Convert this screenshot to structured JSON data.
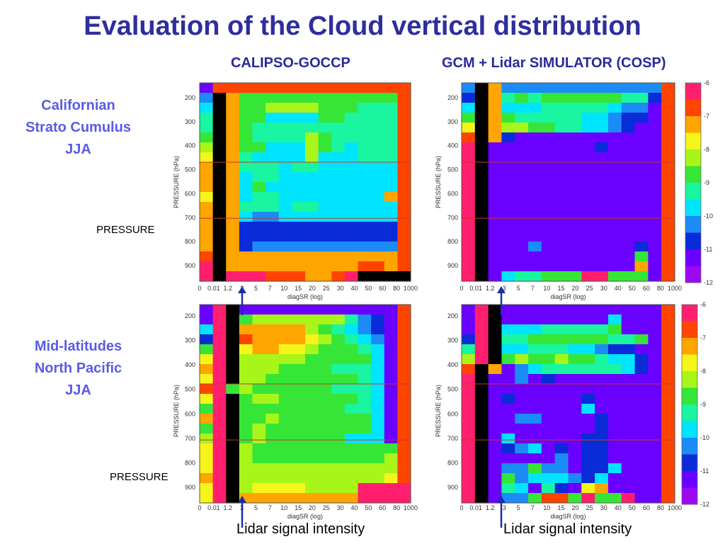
{
  "slide": {
    "title": "Evaluation of the Cloud vertical distribution",
    "col_left": "CALIPSO-GOCCP",
    "col_right": "GCM + Lidar SIMULATOR (COSP)",
    "row1_lines": [
      "Californian",
      "Strato Cumulus",
      "JJA"
    ],
    "row2_lines": [
      "Mid-latitudes",
      "North Pacific",
      "JJA"
    ],
    "pressure_note": "PRESSURE",
    "signal_note": "Lidar signal intensity"
  },
  "colors": {
    "title": "#2e2e9e",
    "row_label": "#5b5be6",
    "arrow": "#1a2ea8",
    "ref_line": "#c0392b",
    "palette": [
      "#9a09f2",
      "#6a00ff",
      "#0a2bd8",
      "#1b8cf6",
      "#00e5ff",
      "#19f5a0",
      "#36e636",
      "#a8f51a",
      "#f5f51a",
      "#ffa500",
      "#ff4400",
      "#ff1f6e"
    ]
  },
  "chart_data": [
    {
      "type": "heatmap",
      "panel": "CALIPSO-GOCCP, Californian Strato Cumulus JJA",
      "xlabel": "diagSR (log)",
      "ylabel": "PRESSURE (hPa)",
      "x_ticks": [
        "0",
        "0.01",
        "1.2",
        "3",
        "5",
        "7",
        "10",
        "15",
        "20",
        "25",
        "30",
        "40",
        "50",
        "60",
        "80",
        "1000"
      ],
      "y_ticks": [
        200,
        300,
        400,
        500,
        600,
        700,
        800,
        900
      ],
      "ylim": [
        100,
        950
      ],
      "z_range": [
        -12,
        -6
      ],
      "colorbar_ticks": [],
      "grid": [
        "1aaaaaaaaaaaaaaa",
        "3c9666666666666a",
        "4c9667777666555a",
        "5c9664444665555a",
        "5c9655555555555a",
        "6c9655557655555a",
        "7c9664447654555a",
        "8c9544447444555a",
        "9c9555455444444a",
        "9c9455444444444a",
        "9c9464444444444a",
        "8c9455444444449a",
        "9c9555455444444a",
        "9c9433444444444a",
        "9c9222222222222a",
        "9c9222222222222a",
        "9c9233333333333a",
        "ac9999999999999a",
        "bc9999999999aa9a",
        "bcbbbaaa99abcccc"
      ]
    },
    {
      "type": "heatmap",
      "panel": "GCM + Lidar SIMULATOR (COSP), Californian Strato Cumulus JJA",
      "xlabel": "diagSR (log)",
      "ylabel": "PRESSURE (hPa)",
      "x_ticks": [
        "0",
        "0.01",
        "1.2",
        "3",
        "5",
        "7",
        "10",
        "15",
        "20",
        "25",
        "30",
        "40",
        "50",
        "60",
        "80",
        "1000"
      ],
      "y_ticks": [
        200,
        300,
        400,
        500,
        600,
        700,
        800,
        900
      ],
      "ylim": [
        100,
        950
      ],
      "z_range": [
        -12,
        -6
      ],
      "colorbar_ticks": [
        "-6",
        "-7",
        "-8",
        "-9",
        "-10",
        "-11",
        "-12"
      ],
      "grid": [
        "3c9333333333333a",
        "2c9565666666552a",
        "4c9444555554331a",
        "6c9655555443221a",
        "8c9776655443211a",
        "ac9211111111111a",
        "bc1111111121111a",
        "bc1111111111111a",
        "bc1111111111111a",
        "bc1111111111111a",
        "bc1111111111111a",
        "bc1111111111111a",
        "bc1111111111111a",
        "bc1111111111111a",
        "bc1111111111111a",
        "bc1111111111111a",
        "bc1113111111121a",
        "bc1111111111161a",
        "bc1111111111191a",
        "bc1455666bb6661a"
      ]
    },
    {
      "type": "heatmap",
      "panel": "CALIPSO-GOCCP, Mid-latitudes North Pacific JJA",
      "xlabel": "diagSR (log)",
      "ylabel": "PRESSURE (hPa)",
      "x_ticks": [
        "0",
        "0.01",
        "1.2",
        "3",
        "5",
        "7",
        "10",
        "15",
        "20",
        "25",
        "30",
        "40",
        "50",
        "60",
        "80",
        "1000"
      ],
      "y_ticks": [
        200,
        300,
        400,
        500,
        600,
        700,
        800,
        900
      ],
      "ylim": [
        100,
        950
      ],
      "z_range": [
        -12,
        -6
      ],
      "colorbar_ticks": [],
      "grid": [
        "1bc111111111111a",
        "1bc677777775321a",
        "4bc999997654321a",
        "2bca99998765431a",
        "6bc899887666541a",
        "8bc777776666641a",
        "9bc777666655541a",
        "8bc776666666541a",
        "ab6766666655541a",
        "8bc677666666541a",
        "6bc666666665541a",
        "9bc667666666641a",
        "6bc676666666641a",
        "7bc676666664441a",
        "8bc766666666666a",
        "8bc766666666667a",
        "8bc777777777777a",
        "9bc777777777778a",
        "8bc788887777bbbb",
        "8bc999999999bbbb"
      ]
    },
    {
      "type": "heatmap",
      "panel": "GCM + Lidar SIMULATOR (COSP), Mid-latitudes North Pacific JJA",
      "xlabel": "diagSR (log)",
      "ylabel": "PRESSURE (hPa)",
      "x_ticks": [
        "0",
        "0.01",
        "1.2",
        "3",
        "5",
        "7",
        "10",
        "15",
        "20",
        "25",
        "30",
        "40",
        "50",
        "60",
        "80",
        "1000"
      ],
      "y_ticks": [
        200,
        300,
        400,
        500,
        600,
        700,
        800,
        900
      ],
      "ylim": [
        100,
        950
      ],
      "z_range": [
        -12,
        -6
      ],
      "colorbar_ticks": [
        "-6",
        "-7",
        "-8",
        "-9",
        "-10",
        "-11",
        "-12"
      ],
      "grid": [
        "1bc111111111111a",
        "1bc111111114111a",
        "1bc444555556111a",
        "2bc556666665561a",
        "5bc445554432211a",
        "7bc676676654421a",
        "ac9134555555421a",
        "bc1131211111111a",
        "bc1111111111111a",
        "bc1211111211111a",
        "bc1111111411111a",
        "bc1133111121111a",
        "bc1111111121111a",
        "bc1411111221111a",
        "bc1234121221111a",
        "bc1111131221111a",
        "bc1336331224111a",
        "bc1634443241111a",
        "bc1541521891111a",
        "bc1336aa6b66b11a"
      ]
    }
  ]
}
